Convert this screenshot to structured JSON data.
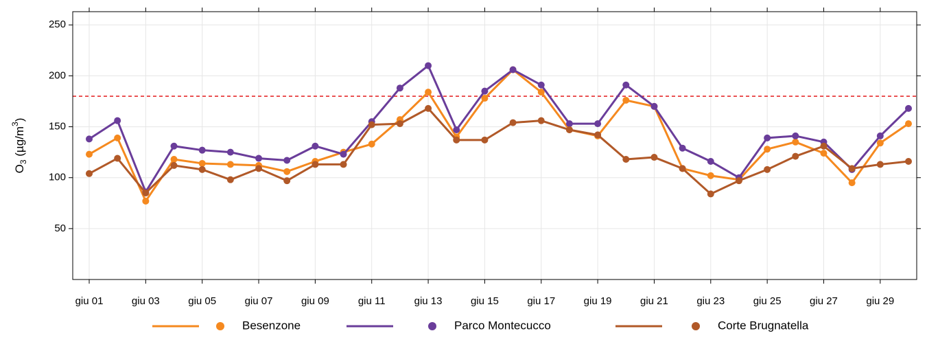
{
  "chart_data": {
    "type": "line",
    "ylabel": [
      "O",
      "3",
      " (µg/m",
      "3",
      ")"
    ],
    "categories": [
      "giu 01",
      null,
      "giu 03",
      null,
      "giu 05",
      null,
      "giu 07",
      null,
      "giu 09",
      null,
      "giu 11",
      null,
      "giu 13",
      null,
      "giu 15",
      null,
      "giu 17",
      null,
      "giu 19",
      null,
      "giu 21",
      null,
      "giu 23",
      null,
      "giu 25",
      null,
      "giu 27",
      null,
      "giu 29",
      null
    ],
    "series": [
      {
        "name": "Besenzone",
        "color": "#f5891f",
        "values": [
          123,
          139,
          77,
          118,
          114,
          113,
          112,
          106,
          116,
          125,
          133,
          157,
          184,
          140,
          178,
          206,
          184,
          147,
          141,
          176,
          170,
          109,
          102,
          98,
          128,
          135,
          124,
          95,
          134,
          153
        ]
      },
      {
        "name": "Parco Montecucco",
        "color": "#6a3d9a",
        "values": [
          138,
          156,
          86,
          131,
          127,
          125,
          119,
          117,
          131,
          123,
          155,
          188,
          210,
          147,
          185,
          206,
          191,
          153,
          153,
          191,
          170,
          129,
          116,
          100,
          139,
          141,
          135,
          108,
          141,
          168
        ]
      },
      {
        "name": "Corte Brugnatella",
        "color": "#b15928",
        "values": [
          104,
          119,
          85,
          112,
          108,
          98,
          109,
          97,
          113,
          113,
          152,
          153,
          168,
          137,
          137,
          154,
          156,
          147,
          142,
          118,
          120,
          109,
          84,
          97,
          108,
          121,
          131,
          109,
          113,
          116
        ]
      }
    ],
    "threshold": 180,
    "threshold_color": "#e41a1c",
    "ylim": [
      0,
      263
    ],
    "yticks": [
      50,
      100,
      150,
      200,
      250
    ],
    "grid": true
  }
}
